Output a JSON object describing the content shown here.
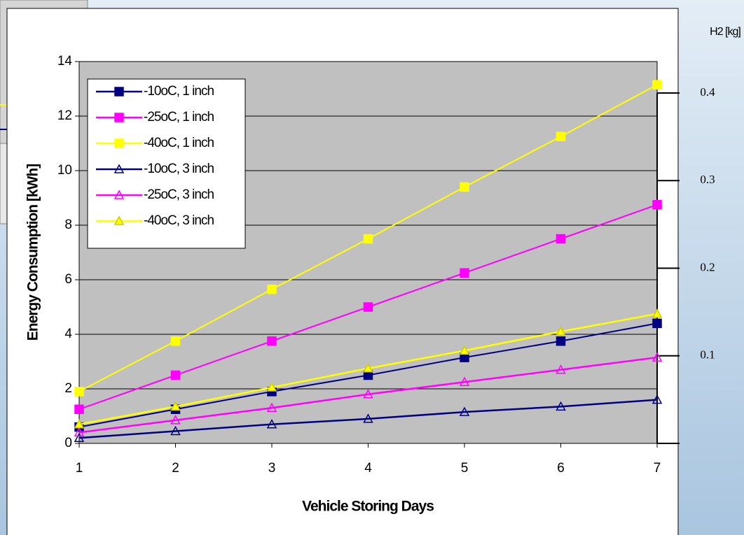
{
  "chart_data": {
    "type": "line",
    "x_label": "Vehicle Storing Days",
    "y_label": "Energy Consumption [kWh]",
    "y2_label": "H2 [kg]",
    "x": [
      1,
      2,
      3,
      4,
      5,
      6,
      7
    ],
    "xlim": [
      1,
      7
    ],
    "xticks": [
      1,
      2,
      3,
      4,
      5,
      6,
      7
    ],
    "ylim": [
      0,
      14
    ],
    "yticks": [
      0,
      2,
      4,
      6,
      8,
      10,
      12,
      14
    ],
    "y2lim": [
      0,
      0.4
    ],
    "y2ticks": [
      0.1,
      0.2,
      0.3,
      0.4
    ],
    "grid": true,
    "legend": "upper left",
    "series": [
      {
        "name": "-10oC, 1 inch",
        "color": "#000080",
        "marker": "square",
        "values": [
          0.6,
          1.25,
          1.9,
          2.5,
          3.15,
          3.75,
          4.4
        ]
      },
      {
        "name": "-25oC, 1 inch",
        "color": "#ff00ff",
        "marker": "square",
        "values": [
          1.25,
          2.5,
          3.75,
          5.0,
          6.25,
          7.5,
          8.75
        ]
      },
      {
        "name": "-40oC, 1 inch",
        "color": "#ffff00",
        "marker": "square",
        "values": [
          1.9,
          3.75,
          5.65,
          7.5,
          9.4,
          11.25,
          13.15
        ]
      },
      {
        "name": "-10oC, 3 inch",
        "color": "#000080",
        "marker": "triangle",
        "values": [
          0.2,
          0.45,
          0.7,
          0.9,
          1.15,
          1.35,
          1.6
        ]
      },
      {
        "name": "-25oC, 3 inch",
        "color": "#ff00ff",
        "marker": "triangle",
        "values": [
          0.4,
          0.85,
          1.3,
          1.8,
          2.25,
          2.7,
          3.15
        ]
      },
      {
        "name": "-40oC, 3 inch",
        "color": "#ffff00",
        "marker": "triangle",
        "values": [
          0.7,
          1.35,
          2.05,
          2.75,
          3.4,
          4.1,
          4.75
        ]
      }
    ]
  }
}
